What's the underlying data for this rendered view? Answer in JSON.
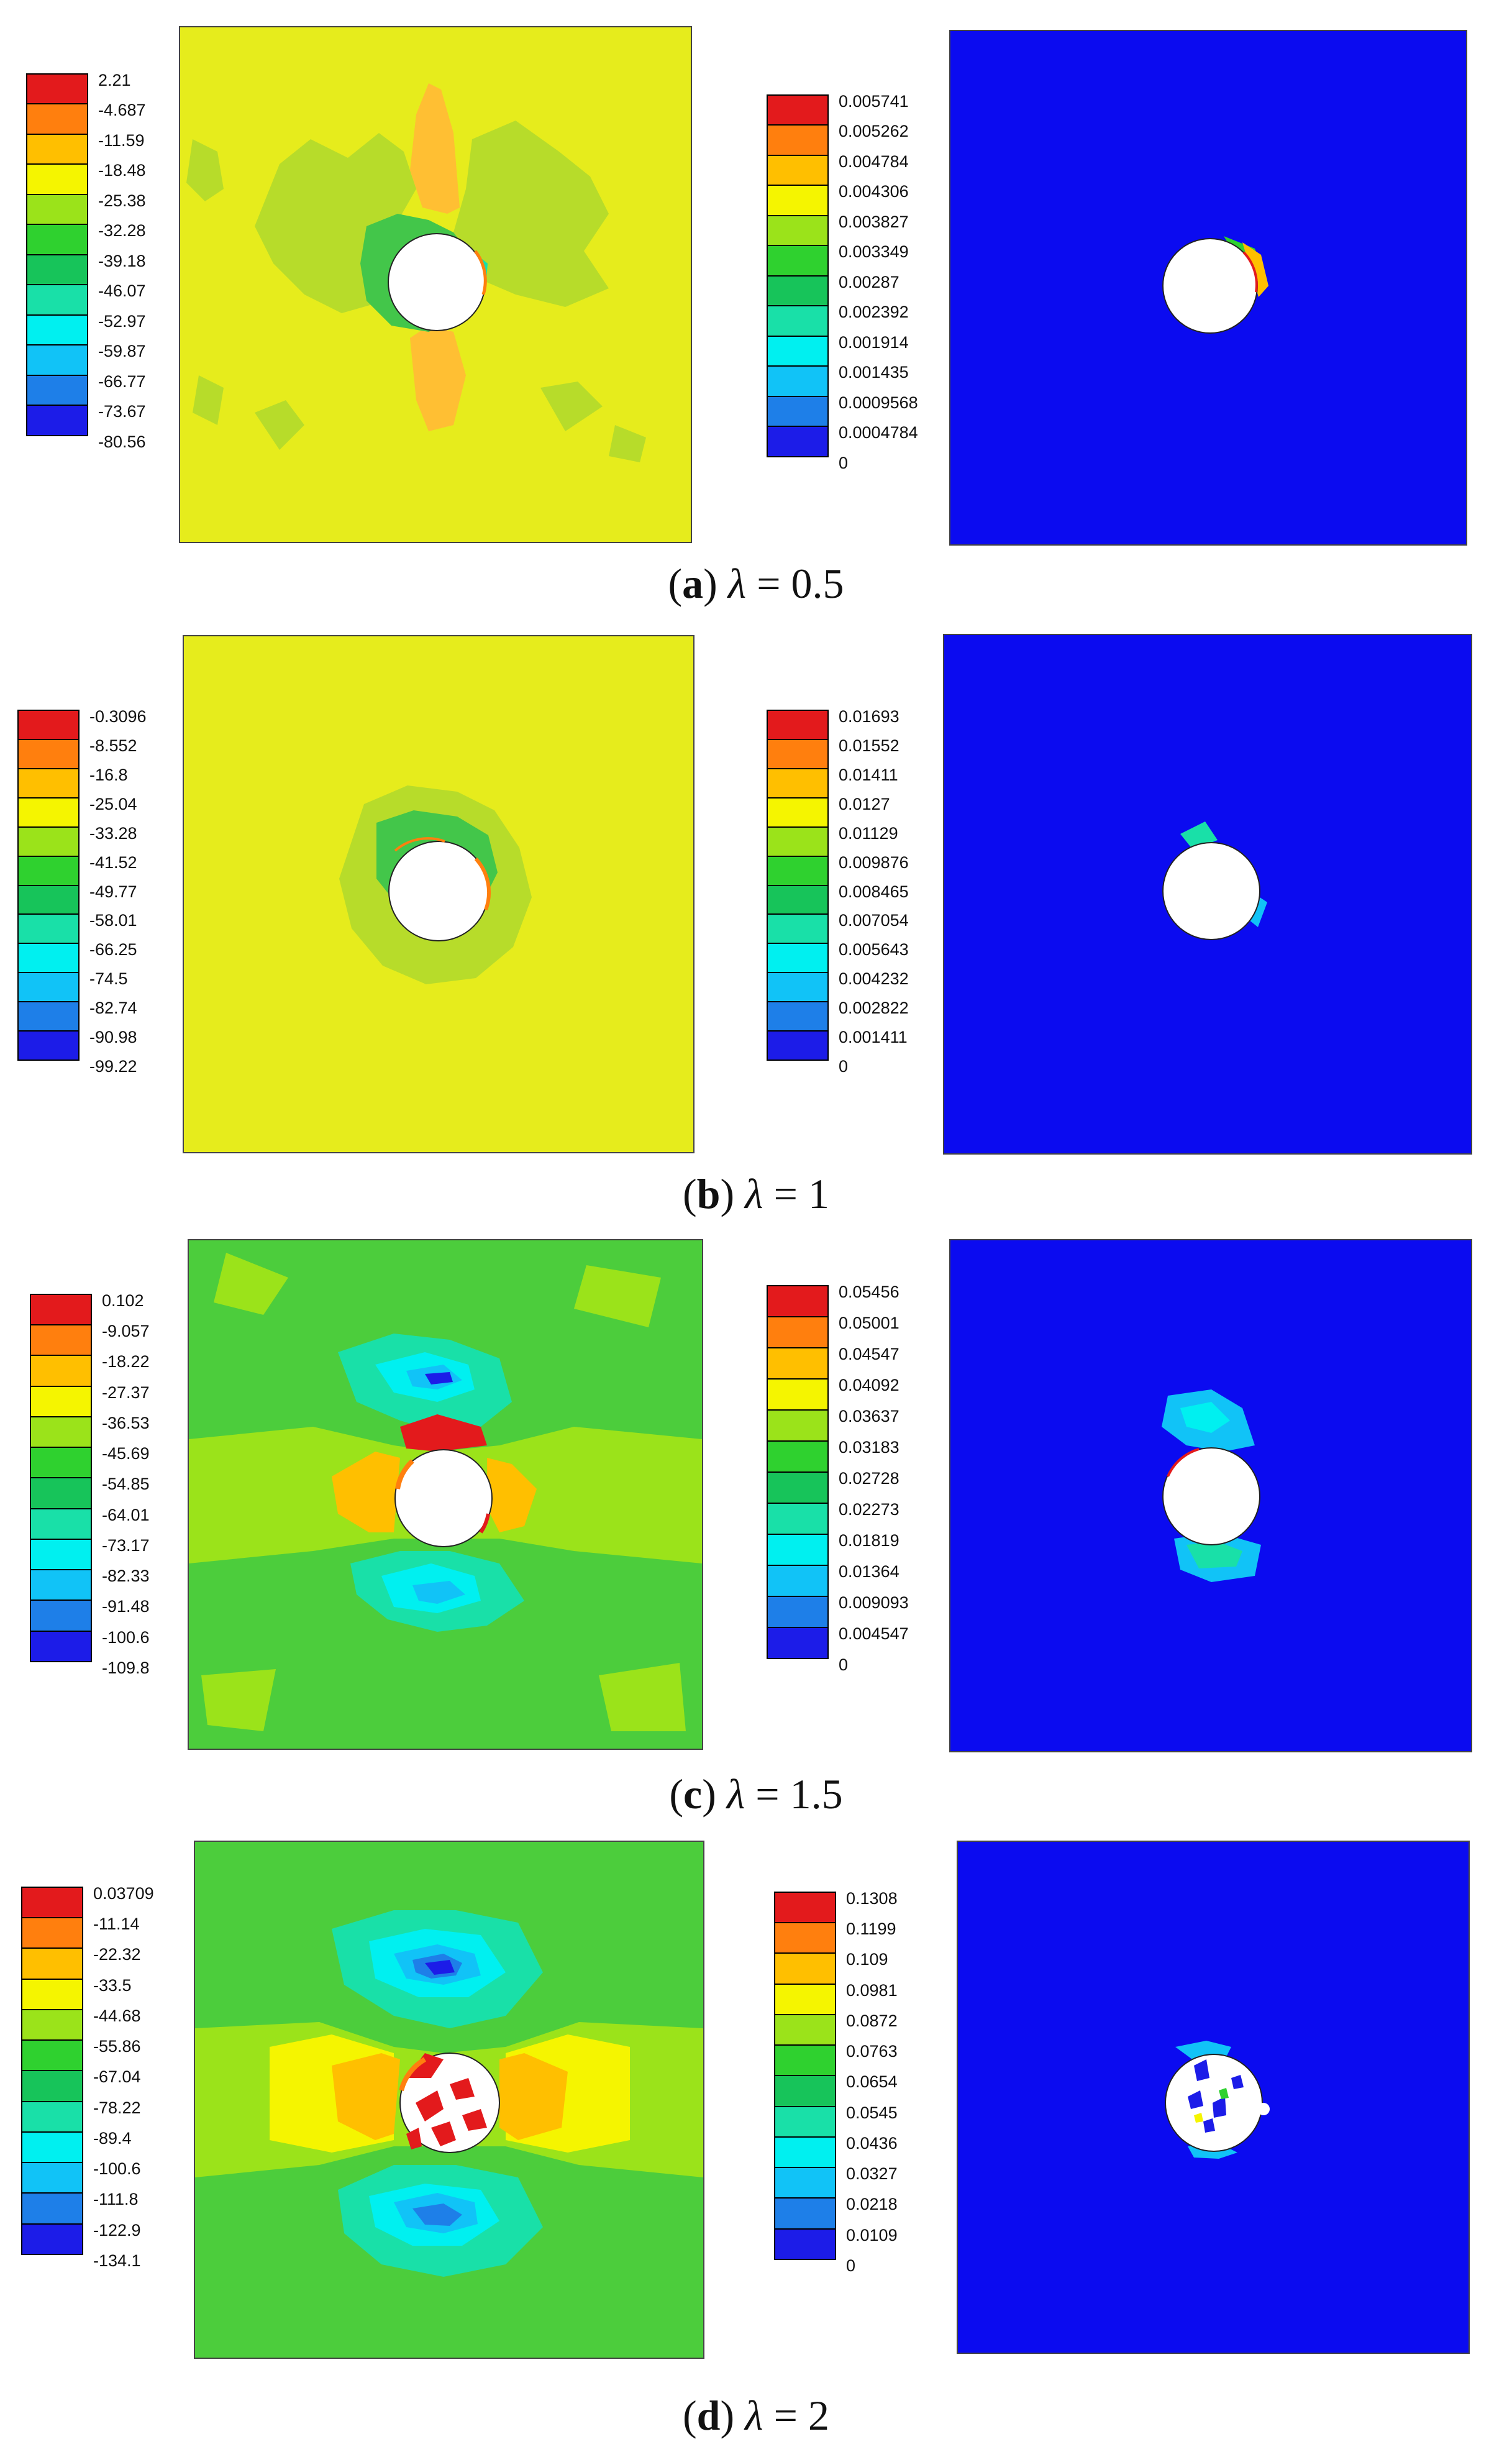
{
  "colors": [
    "#e31a1c",
    "#ff7f0e",
    "#ffbf00",
    "#f5f500",
    "#9be31a",
    "#2fd12f",
    "#17c45a",
    "#19e0a8",
    "#00f0f0",
    "#11c3f7",
    "#1e7fe8",
    "#1c1ce8"
  ],
  "rows": [
    {
      "id": "a",
      "caption": {
        "prefix": "(",
        "letter": "a",
        "suffix": ")",
        "symbol": "λ",
        "eq": "= 0.5"
      },
      "stress_legend": [
        "2.21",
        "-4.687",
        "-11.59",
        "-18.48",
        "-25.38",
        "-32.28",
        "-39.18",
        "-46.07",
        "-52.97",
        "-59.87",
        "-66.77",
        "-73.67",
        "-80.56"
      ],
      "damage_legend": [
        "0.005741",
        "0.005262",
        "0.004784",
        "0.004306",
        "0.003827",
        "0.003349",
        "0.00287",
        "0.002392",
        "0.001914",
        "0.001435",
        "0.0009568",
        "0.0004784",
        "0"
      ]
    },
    {
      "id": "b",
      "caption": {
        "prefix": "(",
        "letter": "b",
        "suffix": ")",
        "symbol": "λ",
        "eq": "= 1"
      },
      "stress_legend": [
        "-0.3096",
        "-8.552",
        "-16.8",
        "-25.04",
        "-33.28",
        "-41.52",
        "-49.77",
        "-58.01",
        "-66.25",
        "-74.5",
        "-82.74",
        "-90.98",
        "-99.22"
      ],
      "damage_legend": [
        "0.01693",
        "0.01552",
        "0.01411",
        "0.0127",
        "0.01129",
        "0.009876",
        "0.008465",
        "0.007054",
        "0.005643",
        "0.004232",
        "0.002822",
        "0.001411",
        "0"
      ]
    },
    {
      "id": "c",
      "caption": {
        "prefix": "(",
        "letter": "c",
        "suffix": ")",
        "symbol": "λ",
        "eq": "= 1.5"
      },
      "stress_legend": [
        "0.102",
        "-9.057",
        "-18.22",
        "-27.37",
        "-36.53",
        "-45.69",
        "-54.85",
        "-64.01",
        "-73.17",
        "-82.33",
        "-91.48",
        "-100.6",
        "-109.8"
      ],
      "damage_legend": [
        "0.05456",
        "0.05001",
        "0.04547",
        "0.04092",
        "0.03637",
        "0.03183",
        "0.02728",
        "0.02273",
        "0.01819",
        "0.01364",
        "0.009093",
        "0.004547",
        "0"
      ]
    },
    {
      "id": "d",
      "caption": {
        "prefix": "(",
        "letter": "d",
        "suffix": ")",
        "symbol": "λ",
        "eq": "= 2"
      },
      "stress_legend": [
        "0.03709",
        "-11.14",
        "-22.32",
        "-33.5",
        "-44.68",
        "-55.86",
        "-67.04",
        "-78.22",
        "-89.4",
        "-100.6",
        "-111.8",
        "-122.9",
        "-134.1"
      ],
      "damage_legend": [
        "0.1308",
        "0.1199",
        "0.109",
        "0.0981",
        "0.0872",
        "0.0763",
        "0.0654",
        "0.0545",
        "0.0436",
        "0.0327",
        "0.0218",
        "0.0109",
        "0"
      ]
    }
  ]
}
